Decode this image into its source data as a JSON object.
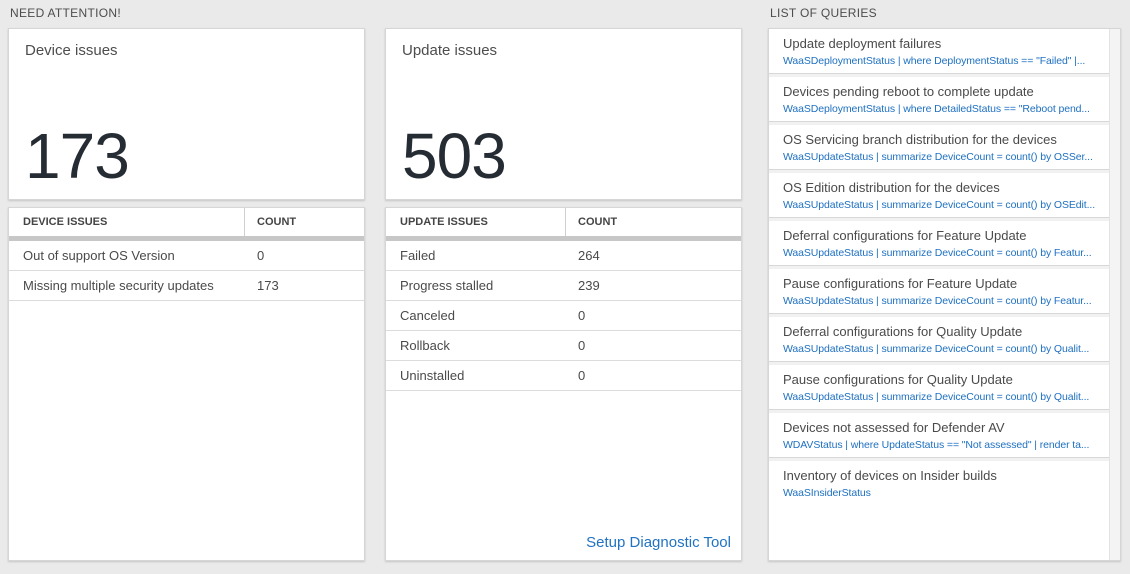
{
  "need_attention": {
    "section_title": "NEED ATTENTION!",
    "device_tile": {
      "title": "Device issues",
      "value": "173"
    },
    "device_table": {
      "header_issue": "DEVICE ISSUES",
      "header_count": "COUNT",
      "rows": [
        {
          "label": "Out of support OS Version",
          "count": "0"
        },
        {
          "label": "Missing multiple security updates",
          "count": "173"
        }
      ]
    },
    "update_tile": {
      "title": "Update issues",
      "value": "503"
    },
    "update_table": {
      "header_issue": "UPDATE ISSUES",
      "header_count": "COUNT",
      "rows": [
        {
          "label": "Failed",
          "count": "264"
        },
        {
          "label": "Progress stalled",
          "count": "239"
        },
        {
          "label": "Canceled",
          "count": "0"
        },
        {
          "label": "Rollback",
          "count": "0"
        },
        {
          "label": "Uninstalled",
          "count": "0"
        }
      ],
      "footer_link": "Setup Diagnostic Tool"
    }
  },
  "queries": {
    "section_title": "LIST OF QUERIES",
    "items": [
      {
        "title": "Update deployment failures",
        "query": "WaaSDeploymentStatus | where DeploymentStatus == \"Failed\" |..."
      },
      {
        "title": "Devices pending reboot to complete update",
        "query": "WaaSDeploymentStatus | where DetailedStatus == \"Reboot pend..."
      },
      {
        "title": "OS Servicing branch distribution for the devices",
        "query": "WaaSUpdateStatus | summarize DeviceCount = count() by OSSer..."
      },
      {
        "title": "OS Edition distribution for the devices",
        "query": "WaaSUpdateStatus | summarize DeviceCount = count() by OSEdit..."
      },
      {
        "title": "Deferral configurations for Feature Update",
        "query": "WaaSUpdateStatus | summarize DeviceCount = count() by Featur..."
      },
      {
        "title": "Pause configurations for Feature Update",
        "query": "WaaSUpdateStatus | summarize DeviceCount = count() by Featur..."
      },
      {
        "title": "Deferral configurations for Quality Update",
        "query": "WaaSUpdateStatus | summarize DeviceCount = count() by Qualit..."
      },
      {
        "title": "Pause configurations for Quality Update",
        "query": "WaaSUpdateStatus | summarize DeviceCount = count() by Qualit..."
      },
      {
        "title": "Devices not assessed for Defender AV",
        "query": "WDAVStatus | where UpdateStatus == \"Not assessed\" | render ta..."
      },
      {
        "title": "Inventory of devices on Insider builds",
        "query": "WaaSInsiderStatus"
      }
    ]
  },
  "colors": {
    "accent_blue": "#2173c2",
    "page_bg": "#eaeaea"
  }
}
